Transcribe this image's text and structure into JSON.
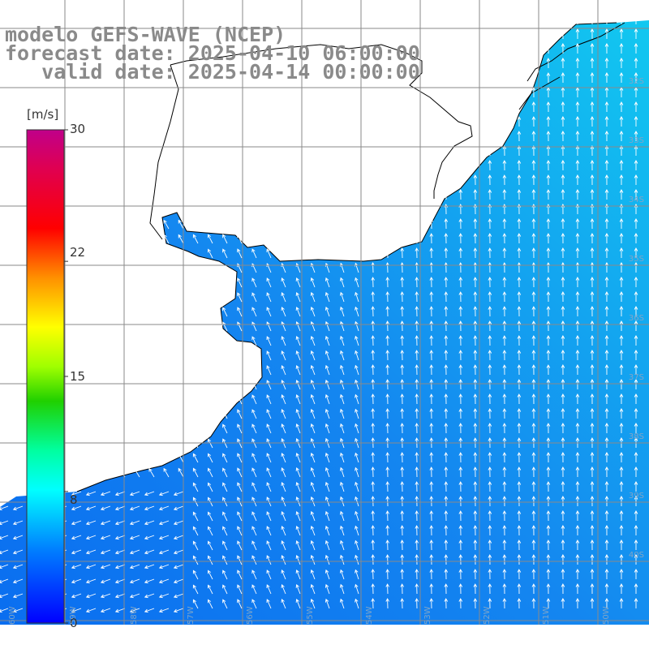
{
  "title": {
    "line1": "modelo GEFS-WAVE (NCEP)",
    "line2": "forecast date: 2025-04-10 06:00:00",
    "line3": "   valid date: 2025-04-14 00:00:00"
  },
  "colorbar": {
    "unit": "[m/s]",
    "ticks": [
      "30",
      "22",
      "15",
      "8",
      "0"
    ],
    "tick_values": [
      30,
      22,
      15,
      8,
      0
    ],
    "colors": [
      "#0000ff",
      "#0080ff",
      "#00e0ff",
      "#00ff80",
      "#40e000",
      "#e0ff00",
      "#ffd000",
      "#ff8000",
      "#ff0000",
      "#e00060",
      "#c00080"
    ]
  },
  "map": {
    "lat_labels": [
      "32S",
      "33S",
      "34S",
      "35S",
      "36S",
      "37S",
      "38S",
      "39S",
      "40S"
    ],
    "lon_labels": [
      "60W",
      "59W",
      "58W",
      "57W",
      "56W",
      "55W",
      "54W",
      "53W",
      "52W",
      "51W",
      "50W"
    ],
    "ocean_color": "#1a8cf0",
    "grid_color": "#888888",
    "coast_color": "#000000"
  }
}
